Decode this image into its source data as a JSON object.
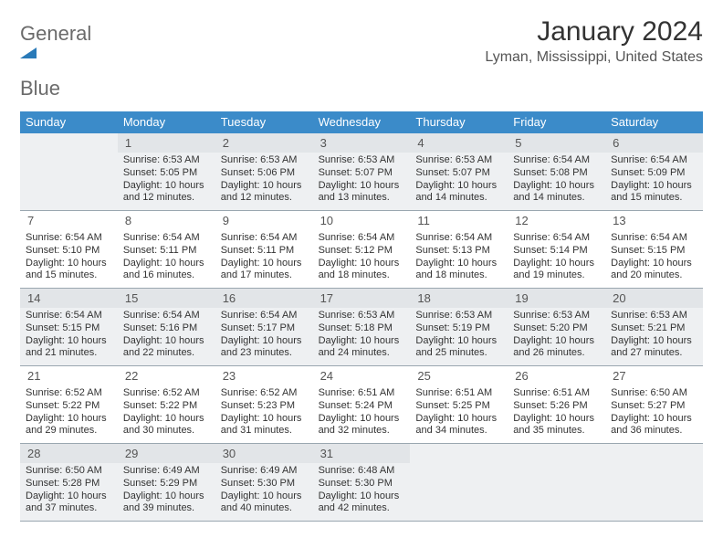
{
  "logo": {
    "text1": "General",
    "text2": "Blue"
  },
  "title": "January 2024",
  "subtitle": "Lyman, Mississippi, United States",
  "colors": {
    "header_bg": "#3b8bc9",
    "header_text": "#ffffff",
    "shade_bg": "#eef0f2",
    "border": "#9aa7b0",
    "logo_gray": "#6b6b6b",
    "logo_blue": "#2a7ab8"
  },
  "dayNames": [
    "Sunday",
    "Monday",
    "Tuesday",
    "Wednesday",
    "Thursday",
    "Friday",
    "Saturday"
  ],
  "weeks": [
    [
      {
        "day": "",
        "lines": []
      },
      {
        "day": "1",
        "lines": [
          "Sunrise: 6:53 AM",
          "Sunset: 5:05 PM",
          "Daylight: 10 hours",
          "and 12 minutes."
        ]
      },
      {
        "day": "2",
        "lines": [
          "Sunrise: 6:53 AM",
          "Sunset: 5:06 PM",
          "Daylight: 10 hours",
          "and 12 minutes."
        ]
      },
      {
        "day": "3",
        "lines": [
          "Sunrise: 6:53 AM",
          "Sunset: 5:07 PM",
          "Daylight: 10 hours",
          "and 13 minutes."
        ]
      },
      {
        "day": "4",
        "lines": [
          "Sunrise: 6:53 AM",
          "Sunset: 5:07 PM",
          "Daylight: 10 hours",
          "and 14 minutes."
        ]
      },
      {
        "day": "5",
        "lines": [
          "Sunrise: 6:54 AM",
          "Sunset: 5:08 PM",
          "Daylight: 10 hours",
          "and 14 minutes."
        ]
      },
      {
        "day": "6",
        "lines": [
          "Sunrise: 6:54 AM",
          "Sunset: 5:09 PM",
          "Daylight: 10 hours",
          "and 15 minutes."
        ]
      }
    ],
    [
      {
        "day": "7",
        "lines": [
          "Sunrise: 6:54 AM",
          "Sunset: 5:10 PM",
          "Daylight: 10 hours",
          "and 15 minutes."
        ]
      },
      {
        "day": "8",
        "lines": [
          "Sunrise: 6:54 AM",
          "Sunset: 5:11 PM",
          "Daylight: 10 hours",
          "and 16 minutes."
        ]
      },
      {
        "day": "9",
        "lines": [
          "Sunrise: 6:54 AM",
          "Sunset: 5:11 PM",
          "Daylight: 10 hours",
          "and 17 minutes."
        ]
      },
      {
        "day": "10",
        "lines": [
          "Sunrise: 6:54 AM",
          "Sunset: 5:12 PM",
          "Daylight: 10 hours",
          "and 18 minutes."
        ]
      },
      {
        "day": "11",
        "lines": [
          "Sunrise: 6:54 AM",
          "Sunset: 5:13 PM",
          "Daylight: 10 hours",
          "and 18 minutes."
        ]
      },
      {
        "day": "12",
        "lines": [
          "Sunrise: 6:54 AM",
          "Sunset: 5:14 PM",
          "Daylight: 10 hours",
          "and 19 minutes."
        ]
      },
      {
        "day": "13",
        "lines": [
          "Sunrise: 6:54 AM",
          "Sunset: 5:15 PM",
          "Daylight: 10 hours",
          "and 20 minutes."
        ]
      }
    ],
    [
      {
        "day": "14",
        "lines": [
          "Sunrise: 6:54 AM",
          "Sunset: 5:15 PM",
          "Daylight: 10 hours",
          "and 21 minutes."
        ]
      },
      {
        "day": "15",
        "lines": [
          "Sunrise: 6:54 AM",
          "Sunset: 5:16 PM",
          "Daylight: 10 hours",
          "and 22 minutes."
        ]
      },
      {
        "day": "16",
        "lines": [
          "Sunrise: 6:54 AM",
          "Sunset: 5:17 PM",
          "Daylight: 10 hours",
          "and 23 minutes."
        ]
      },
      {
        "day": "17",
        "lines": [
          "Sunrise: 6:53 AM",
          "Sunset: 5:18 PM",
          "Daylight: 10 hours",
          "and 24 minutes."
        ]
      },
      {
        "day": "18",
        "lines": [
          "Sunrise: 6:53 AM",
          "Sunset: 5:19 PM",
          "Daylight: 10 hours",
          "and 25 minutes."
        ]
      },
      {
        "day": "19",
        "lines": [
          "Sunrise: 6:53 AM",
          "Sunset: 5:20 PM",
          "Daylight: 10 hours",
          "and 26 minutes."
        ]
      },
      {
        "day": "20",
        "lines": [
          "Sunrise: 6:53 AM",
          "Sunset: 5:21 PM",
          "Daylight: 10 hours",
          "and 27 minutes."
        ]
      }
    ],
    [
      {
        "day": "21",
        "lines": [
          "Sunrise: 6:52 AM",
          "Sunset: 5:22 PM",
          "Daylight: 10 hours",
          "and 29 minutes."
        ]
      },
      {
        "day": "22",
        "lines": [
          "Sunrise: 6:52 AM",
          "Sunset: 5:22 PM",
          "Daylight: 10 hours",
          "and 30 minutes."
        ]
      },
      {
        "day": "23",
        "lines": [
          "Sunrise: 6:52 AM",
          "Sunset: 5:23 PM",
          "Daylight: 10 hours",
          "and 31 minutes."
        ]
      },
      {
        "day": "24",
        "lines": [
          "Sunrise: 6:51 AM",
          "Sunset: 5:24 PM",
          "Daylight: 10 hours",
          "and 32 minutes."
        ]
      },
      {
        "day": "25",
        "lines": [
          "Sunrise: 6:51 AM",
          "Sunset: 5:25 PM",
          "Daylight: 10 hours",
          "and 34 minutes."
        ]
      },
      {
        "day": "26",
        "lines": [
          "Sunrise: 6:51 AM",
          "Sunset: 5:26 PM",
          "Daylight: 10 hours",
          "and 35 minutes."
        ]
      },
      {
        "day": "27",
        "lines": [
          "Sunrise: 6:50 AM",
          "Sunset: 5:27 PM",
          "Daylight: 10 hours",
          "and 36 minutes."
        ]
      }
    ],
    [
      {
        "day": "28",
        "lines": [
          "Sunrise: 6:50 AM",
          "Sunset: 5:28 PM",
          "Daylight: 10 hours",
          "and 37 minutes."
        ]
      },
      {
        "day": "29",
        "lines": [
          "Sunrise: 6:49 AM",
          "Sunset: 5:29 PM",
          "Daylight: 10 hours",
          "and 39 minutes."
        ]
      },
      {
        "day": "30",
        "lines": [
          "Sunrise: 6:49 AM",
          "Sunset: 5:30 PM",
          "Daylight: 10 hours",
          "and 40 minutes."
        ]
      },
      {
        "day": "31",
        "lines": [
          "Sunrise: 6:48 AM",
          "Sunset: 5:30 PM",
          "Daylight: 10 hours",
          "and 42 minutes."
        ]
      },
      {
        "day": "",
        "lines": []
      },
      {
        "day": "",
        "lines": []
      },
      {
        "day": "",
        "lines": []
      }
    ]
  ]
}
